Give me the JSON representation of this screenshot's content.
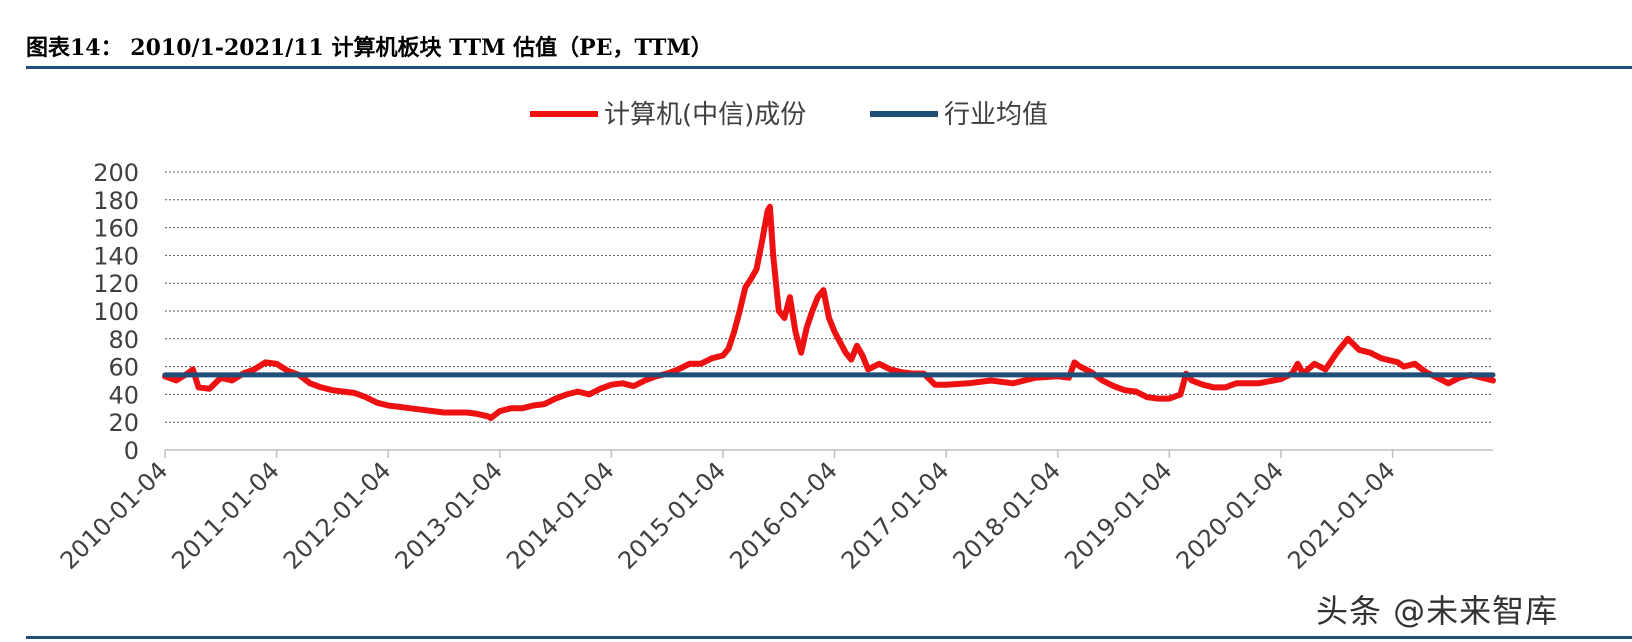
{
  "header": {
    "title": "图表14：  2010/1-2021/11 计算机板块 TTM 估值（PE，TTM）"
  },
  "watermark": "头条 @未来智库",
  "colors": {
    "series_main": "#ee1111",
    "series_avg": "#1f4e79",
    "rule": "#1f4e79"
  },
  "chart_data": {
    "type": "line",
    "title": "",
    "xlabel": "",
    "ylabel": "",
    "ylim": [
      0,
      200
    ],
    "yticks": [
      0,
      20,
      40,
      60,
      80,
      100,
      120,
      140,
      160,
      180,
      200
    ],
    "xlim": [
      2010.0,
      2021.9
    ],
    "x_ticks": [
      2010,
      2011,
      2012,
      2013,
      2014,
      2015,
      2016,
      2017,
      2018,
      2019,
      2020,
      2021
    ],
    "x_tick_labels": [
      "2010-01-04",
      "2011-01-04",
      "2012-01-04",
      "2013-01-04",
      "2014-01-04",
      "2015-01-04",
      "2016-01-04",
      "2017-01-04",
      "2018-01-04",
      "2019-01-04",
      "2020-01-04",
      "2021-01-04"
    ],
    "grid": true,
    "legend": "top-center",
    "series": [
      {
        "name": "计算机(中信)成份",
        "x": [
          2010.0,
          2010.1,
          2010.2,
          2010.25,
          2010.3,
          2010.4,
          2010.5,
          2010.6,
          2010.7,
          2010.8,
          2010.9,
          2011.0,
          2011.1,
          2011.2,
          2011.3,
          2011.4,
          2011.5,
          2011.6,
          2011.7,
          2011.8,
          2011.9,
          2012.0,
          2012.1,
          2012.2,
          2012.3,
          2012.4,
          2012.5,
          2012.6,
          2012.7,
          2012.8,
          2012.9,
          2012.92,
          2013.0,
          2013.1,
          2013.2,
          2013.3,
          2013.4,
          2013.5,
          2013.6,
          2013.7,
          2013.8,
          2013.9,
          2014.0,
          2014.1,
          2014.2,
          2014.3,
          2014.4,
          2014.5,
          2014.6,
          2014.7,
          2014.8,
          2014.9,
          2015.0,
          2015.05,
          2015.1,
          2015.15,
          2015.2,
          2015.25,
          2015.3,
          2015.35,
          2015.4,
          2015.42,
          2015.45,
          2015.5,
          2015.55,
          2015.6,
          2015.65,
          2015.7,
          2015.75,
          2015.8,
          2015.85,
          2015.9,
          2015.95,
          2016.0,
          2016.1,
          2016.15,
          2016.2,
          2016.25,
          2016.3,
          2016.4,
          2016.5,
          2016.6,
          2016.7,
          2016.8,
          2016.9,
          2017.0,
          2017.2,
          2017.4,
          2017.6,
          2017.8,
          2018.0,
          2018.1,
          2018.15,
          2018.2,
          2018.3,
          2018.4,
          2018.5,
          2018.6,
          2018.7,
          2018.8,
          2018.9,
          2019.0,
          2019.1,
          2019.15,
          2019.2,
          2019.3,
          2019.4,
          2019.5,
          2019.6,
          2019.8,
          2020.0,
          2020.1,
          2020.15,
          2020.2,
          2020.3,
          2020.4,
          2020.45,
          2020.5,
          2020.6,
          2020.7,
          2020.8,
          2020.9,
          2021.0,
          2021.05,
          2021.1,
          2021.2,
          2021.3,
          2021.4,
          2021.5,
          2021.6,
          2021.7,
          2021.8,
          2021.9
        ],
        "values": [
          53,
          50,
          55,
          58,
          45,
          44,
          52,
          50,
          55,
          58,
          63,
          62,
          57,
          54,
          48,
          45,
          43,
          42,
          41,
          38,
          34,
          32,
          31,
          30,
          29,
          28,
          27,
          27,
          27,
          26,
          24,
          23,
          28,
          30,
          30,
          32,
          33,
          37,
          40,
          42,
          40,
          44,
          47,
          48,
          46,
          50,
          53,
          55,
          58,
          62,
          62,
          66,
          68,
          73,
          85,
          100,
          117,
          123,
          130,
          150,
          172,
          175,
          140,
          100,
          95,
          110,
          85,
          70,
          88,
          100,
          110,
          115,
          95,
          85,
          70,
          65,
          75,
          68,
          58,
          62,
          58,
          56,
          55,
          55,
          47,
          47,
          48,
          50,
          48,
          52,
          53,
          52,
          63,
          60,
          56,
          50,
          46,
          43,
          42,
          38,
          37,
          37,
          40,
          55,
          50,
          47,
          45,
          45,
          48,
          48,
          51,
          55,
          62,
          55,
          62,
          58,
          64,
          70,
          80,
          72,
          70,
          66,
          64,
          63,
          60,
          62,
          56,
          52,
          48,
          52,
          54,
          52,
          50
        ]
      },
      {
        "name": "行业均值",
        "x": [
          2010.0,
          2021.9
        ],
        "values": [
          54,
          54
        ]
      }
    ]
  }
}
